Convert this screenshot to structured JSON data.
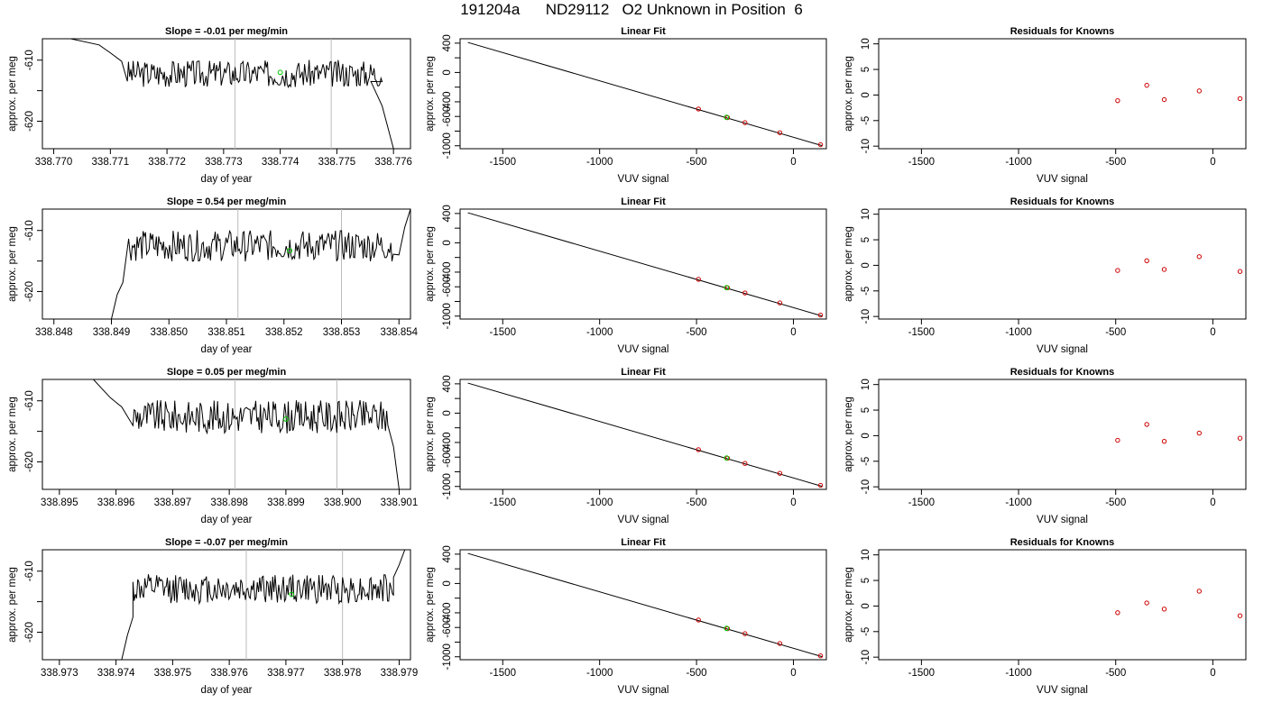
{
  "title": "191204a      ND29112   O2 Unknown in Position  6",
  "colors": {
    "line": "#000000",
    "frame": "#000000",
    "known_point": "#cc0000",
    "unknown_point": "#00cc00",
    "reference_line": "#bbbbbb"
  },
  "chart_data": [
    {
      "type": "line",
      "panel": "time-series",
      "row": 0,
      "title": "Slope =  -0.01  per meg/min",
      "xlabel": "day of year",
      "ylabel": "approx. per meg",
      "xlim": [
        338.7698,
        338.7763
      ],
      "ylim": [
        -624.5,
        -606.5
      ],
      "xticks": [
        338.77,
        338.771,
        338.772,
        338.773,
        338.774,
        338.775,
        338.776
      ],
      "xtick_labels": [
        "338.770",
        "338.771",
        "338.772",
        "338.773",
        "338.774",
        "338.775",
        "338.776"
      ],
      "yticks": [
        -620,
        -615,
        -610
      ],
      "ytick_labels": [
        "-620",
        "",
        "-610"
      ],
      "vlines": [
        338.7732,
        338.7749
      ],
      "unknown_marker": {
        "x": 338.774,
        "y": -612
      },
      "trace": {
        "start_x": 338.7713,
        "end_x": 338.7758,
        "level": -612.2,
        "amplitude": 1.4,
        "head_x": [
          338.7703,
          338.7708,
          338.771,
          338.7712
        ],
        "head_y": [
          -606.5,
          -607.5,
          -608.8,
          -610.2
        ],
        "tail_x": [
          338.7756,
          338.7758,
          338.776
        ],
        "tail_y": [
          -613.5,
          -617.5,
          -624.5
        ]
      }
    },
    {
      "type": "scatter",
      "panel": "linear-fit",
      "row": 0,
      "title": "Linear Fit",
      "xlabel": "VUV signal",
      "ylabel": "approx. per meg",
      "xlim": [
        -1720,
        170
      ],
      "ylim": [
        -1040,
        460
      ],
      "xticks": [
        -1500,
        -1000,
        -500,
        0
      ],
      "xtick_labels": [
        "-1500",
        "-1000",
        "-500",
        "0"
      ],
      "yticks": [
        -1000,
        -800,
        -600,
        -400,
        -200,
        0,
        200,
        400
      ],
      "ytick_labels": [
        "-1000",
        "",
        "-600",
        "-400",
        "",
        "0",
        "",
        "400"
      ],
      "fit_line": {
        "x": [
          -1680,
          150
        ],
        "y": [
          410,
          -1000
        ]
      },
      "knowns": [
        {
          "x": -490,
          "y": -498
        },
        {
          "x": -340,
          "y": -616
        },
        {
          "x": -250,
          "y": -685
        },
        {
          "x": -70,
          "y": -822
        },
        {
          "x": 140,
          "y": -985
        }
      ],
      "unknown": {
        "x": -345,
        "y": -612
      }
    },
    {
      "type": "scatter",
      "panel": "residuals",
      "row": 0,
      "title": "Residuals for Knowns",
      "xlabel": "VUV signal",
      "ylabel": "approx. per meg",
      "xlim": [
        -1720,
        170
      ],
      "ylim": [
        -10.5,
        11
      ],
      "xticks": [
        -1500,
        -1000,
        -500,
        0
      ],
      "xtick_labels": [
        "-1500",
        "-1000",
        "-500",
        "0"
      ],
      "yticks": [
        -10,
        -5,
        0,
        5,
        10
      ],
      "ytick_labels": [
        "-10",
        "-5",
        "0",
        "5",
        "10"
      ],
      "points": [
        {
          "x": -490,
          "y": -1.1
        },
        {
          "x": -340,
          "y": 1.9
        },
        {
          "x": -250,
          "y": -0.9
        },
        {
          "x": -70,
          "y": 0.8
        },
        {
          "x": 140,
          "y": -0.7
        }
      ]
    },
    {
      "type": "line",
      "panel": "time-series",
      "row": 1,
      "title": "Slope =  0.54  per meg/min",
      "xlabel": "day of year",
      "ylabel": "approx. per meg",
      "xlim": [
        338.8478,
        338.8542
      ],
      "ylim": [
        -624.5,
        -606.5
      ],
      "xticks": [
        338.848,
        338.849,
        338.85,
        338.851,
        338.852,
        338.853,
        338.854
      ],
      "xtick_labels": [
        "338.848",
        "338.849",
        "338.850",
        "338.851",
        "338.852",
        "338.853",
        "338.854"
      ],
      "yticks": [
        -620,
        -615,
        -610
      ],
      "ytick_labels": [
        "-620",
        "",
        "-610"
      ],
      "vlines": [
        338.8512,
        338.853
      ],
      "unknown_marker": {
        "x": 338.8521,
        "y": -613.3
      },
      "trace": {
        "start_x": 338.8493,
        "end_x": 338.8539,
        "level": -612.5,
        "amplitude": 1.6,
        "head_x": [
          338.849,
          338.8491,
          338.8492
        ],
        "head_y": [
          -624.5,
          -620.5,
          -618.5
        ],
        "tail_x": [
          338.854,
          338.8541,
          338.8542
        ],
        "tail_y": [
          -614.0,
          -609.5,
          -606.5
        ]
      }
    },
    {
      "type": "scatter",
      "panel": "linear-fit",
      "row": 1,
      "title": "Linear Fit",
      "xlabel": "VUV signal",
      "ylabel": "approx. per meg",
      "xlim": [
        -1720,
        170
      ],
      "ylim": [
        -1040,
        460
      ],
      "xticks": [
        -1500,
        -1000,
        -500,
        0
      ],
      "xtick_labels": [
        "-1500",
        "-1000",
        "-500",
        "0"
      ],
      "yticks": [
        -1000,
        -800,
        -600,
        -400,
        -200,
        0,
        200,
        400
      ],
      "ytick_labels": [
        "-1000",
        "",
        "-600",
        "-400",
        "",
        "0",
        "",
        "400"
      ],
      "fit_line": {
        "x": [
          -1680,
          150
        ],
        "y": [
          410,
          -1000
        ]
      },
      "knowns": [
        {
          "x": -490,
          "y": -498
        },
        {
          "x": -340,
          "y": -614
        },
        {
          "x": -250,
          "y": -684
        },
        {
          "x": -70,
          "y": -820
        },
        {
          "x": 140,
          "y": -986
        }
      ],
      "unknown": {
        "x": -345,
        "y": -612
      }
    },
    {
      "type": "scatter",
      "panel": "residuals",
      "row": 1,
      "title": "Residuals for Knowns",
      "xlabel": "VUV signal",
      "ylabel": "approx. per meg",
      "xlim": [
        -1720,
        170
      ],
      "ylim": [
        -10.5,
        11
      ],
      "xticks": [
        -1500,
        -1000,
        -500,
        0
      ],
      "xtick_labels": [
        "-1500",
        "-1000",
        "-500",
        "0"
      ],
      "yticks": [
        -10,
        -5,
        0,
        5,
        10
      ],
      "ytick_labels": [
        "-10",
        "-5",
        "0",
        "5",
        "10"
      ],
      "points": [
        {
          "x": -490,
          "y": -1.0
        },
        {
          "x": -340,
          "y": 0.9
        },
        {
          "x": -250,
          "y": -0.8
        },
        {
          "x": -70,
          "y": 1.7
        },
        {
          "x": 140,
          "y": -1.2
        }
      ]
    },
    {
      "type": "line",
      "panel": "time-series",
      "row": 2,
      "title": "Slope =  0.05  per meg/min",
      "xlabel": "day of year",
      "ylabel": "approx. per meg",
      "xlim": [
        338.8947,
        338.9012
      ],
      "ylim": [
        -624.5,
        -606.5
      ],
      "xticks": [
        338.895,
        338.896,
        338.897,
        338.898,
        338.899,
        338.9,
        338.901
      ],
      "xtick_labels": [
        "338.895",
        "338.896",
        "338.897",
        "338.898",
        "338.899",
        "338.900",
        "338.901"
      ],
      "yticks": [
        -620,
        -615,
        -610
      ],
      "ytick_labels": [
        "-620",
        "",
        "-610"
      ],
      "vlines": [
        338.8981,
        338.8999
      ],
      "unknown_marker": {
        "x": 338.899,
        "y": -613
      },
      "trace": {
        "start_x": 338.8963,
        "end_x": 338.9008,
        "level": -612.6,
        "amplitude": 1.7,
        "head_x": [
          338.8956,
          338.8959,
          338.8961
        ],
        "head_y": [
          -606.5,
          -609.5,
          -611.0
        ],
        "tail_x": [
          338.9008,
          338.9009,
          338.901
        ],
        "tail_y": [
          -614.0,
          -617.5,
          -624.5
        ]
      }
    },
    {
      "type": "scatter",
      "panel": "linear-fit",
      "row": 2,
      "title": "Linear Fit",
      "xlabel": "VUV signal",
      "ylabel": "approx. per meg",
      "xlim": [
        -1720,
        170
      ],
      "ylim": [
        -1040,
        460
      ],
      "xticks": [
        -1500,
        -1000,
        -500,
        0
      ],
      "xtick_labels": [
        "-1500",
        "-1000",
        "-500",
        "0"
      ],
      "yticks": [
        -1000,
        -800,
        -600,
        -400,
        -200,
        0,
        200,
        400
      ],
      "ytick_labels": [
        "-1000",
        "",
        "-600",
        "-400",
        "",
        "0",
        "",
        "400"
      ],
      "fit_line": {
        "x": [
          -1680,
          150
        ],
        "y": [
          410,
          -1000
        ]
      },
      "knowns": [
        {
          "x": -490,
          "y": -498
        },
        {
          "x": -340,
          "y": -615
        },
        {
          "x": -250,
          "y": -686
        },
        {
          "x": -70,
          "y": -821
        },
        {
          "x": 140,
          "y": -985
        }
      ],
      "unknown": {
        "x": -345,
        "y": -612
      }
    },
    {
      "type": "scatter",
      "panel": "residuals",
      "row": 2,
      "title": "Residuals for Knowns",
      "xlabel": "VUV signal",
      "ylabel": "approx. per meg",
      "xlim": [
        -1720,
        170
      ],
      "ylim": [
        -10.5,
        11
      ],
      "xticks": [
        -1500,
        -1000,
        -500,
        0
      ],
      "xtick_labels": [
        "-1500",
        "-1000",
        "-500",
        "0"
      ],
      "yticks": [
        -10,
        -5,
        0,
        5,
        10
      ],
      "ytick_labels": [
        "-10",
        "-5",
        "0",
        "5",
        "10"
      ],
      "points": [
        {
          "x": -490,
          "y": -0.9
        },
        {
          "x": -340,
          "y": 2.2
        },
        {
          "x": -250,
          "y": -1.1
        },
        {
          "x": -70,
          "y": 0.5
        },
        {
          "x": 140,
          "y": -0.5
        }
      ]
    },
    {
      "type": "line",
      "panel": "time-series",
      "row": 3,
      "title": "Slope =  -0.07  per meg/min",
      "xlabel": "day of year",
      "ylabel": "approx. per meg",
      "xlim": [
        338.9727,
        338.9792
      ],
      "ylim": [
        -624.5,
        -606.5
      ],
      "xticks": [
        338.973,
        338.974,
        338.975,
        338.976,
        338.977,
        338.978,
        338.979
      ],
      "xtick_labels": [
        "338.973",
        "338.974",
        "338.975",
        "338.976",
        "338.977",
        "338.978",
        "338.979"
      ],
      "yticks": [
        -620,
        -615,
        -610
      ],
      "ytick_labels": [
        "-620",
        "",
        "-610"
      ],
      "vlines": [
        338.9763,
        338.978
      ],
      "unknown_marker": {
        "x": 338.9771,
        "y": -613.8
      },
      "trace": {
        "start_x": 338.9743,
        "end_x": 338.9789,
        "level": -612.9,
        "amplitude": 1.5,
        "head_x": [
          338.9741,
          338.9742,
          338.9743
        ],
        "head_y": [
          -624.5,
          -620.5,
          -617.5
        ],
        "tail_x": [
          338.9789,
          338.979,
          338.9791
        ],
        "tail_y": [
          -611.0,
          -609.0,
          -606.5
        ]
      }
    },
    {
      "type": "scatter",
      "panel": "linear-fit",
      "row": 3,
      "title": "Linear Fit",
      "xlabel": "VUV signal",
      "ylabel": "approx. per meg",
      "xlim": [
        -1720,
        170
      ],
      "ylim": [
        -1040,
        460
      ],
      "xticks": [
        -1500,
        -1000,
        -500,
        0
      ],
      "xtick_labels": [
        "-1500",
        "-1000",
        "-500",
        "0"
      ],
      "yticks": [
        -1000,
        -800,
        -600,
        -400,
        -200,
        0,
        200,
        400
      ],
      "ytick_labels": [
        "-1000",
        "",
        "-600",
        "-400",
        "",
        "0",
        "",
        "400"
      ],
      "fit_line": {
        "x": [
          -1680,
          150
        ],
        "y": [
          410,
          -1000
        ]
      },
      "knowns": [
        {
          "x": -490,
          "y": -498
        },
        {
          "x": -340,
          "y": -616
        },
        {
          "x": -250,
          "y": -685
        },
        {
          "x": -70,
          "y": -819
        },
        {
          "x": 140,
          "y": -987
        }
      ],
      "unknown": {
        "x": -345,
        "y": -612
      }
    },
    {
      "type": "scatter",
      "panel": "residuals",
      "row": 3,
      "title": "Residuals for Knowns",
      "xlabel": "VUV signal",
      "ylabel": "approx. per meg",
      "xlim": [
        -1720,
        170
      ],
      "ylim": [
        -10.5,
        11
      ],
      "xticks": [
        -1500,
        -1000,
        -500,
        0
      ],
      "xtick_labels": [
        "-1500",
        "-1000",
        "-500",
        "0"
      ],
      "yticks": [
        -10,
        -5,
        0,
        5,
        10
      ],
      "ytick_labels": [
        "-10",
        "-5",
        "0",
        "5",
        "10"
      ],
      "points": [
        {
          "x": -490,
          "y": -1.3
        },
        {
          "x": -340,
          "y": 0.6
        },
        {
          "x": -250,
          "y": -0.6
        },
        {
          "x": -70,
          "y": 2.9
        },
        {
          "x": 140,
          "y": -1.9
        }
      ]
    }
  ]
}
